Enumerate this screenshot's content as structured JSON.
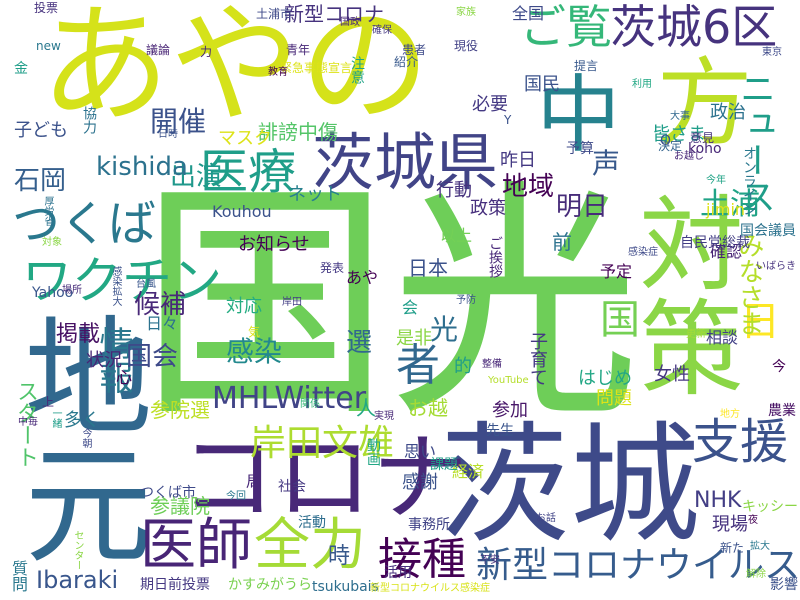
{
  "words": [
    {
      "text": "国光",
      "color": "#6ece58"
    },
    {
      "text": "あやの",
      "color": "#d5e21a"
    },
    {
      "text": "茨城",
      "color": "#3e4a89"
    },
    {
      "text": "コロナ",
      "color": "#482878"
    },
    {
      "text": "地元",
      "color": "#31688e"
    },
    {
      "text": "方",
      "color": "#bddf26"
    },
    {
      "text": "対策",
      "color": "#8bd646"
    },
    {
      "text": "中",
      "color": "#26828e"
    },
    {
      "text": "茨城県",
      "color": "#414487"
    },
    {
      "text": "医師",
      "color": "#482576"
    },
    {
      "text": "全力",
      "color": "#a5db36"
    },
    {
      "text": "ご覧",
      "color": "#35b779"
    },
    {
      "text": "茨城6区",
      "color": "#46337e"
    },
    {
      "text": "医療",
      "color": "#1f9e89"
    },
    {
      "text": "つくば",
      "color": "#2a788e"
    },
    {
      "text": "ワクチン",
      "color": "#22a884"
    },
    {
      "text": "接種",
      "color": "#440154"
    },
    {
      "text": "支援",
      "color": "#3b528b"
    },
    {
      "text": "新型コロナウイルス",
      "color": "#365c8d"
    },
    {
      "text": "MHLWitter",
      "color": "#414487"
    },
    {
      "text": "岸田文雄",
      "color": "#addc30"
    },
    {
      "text": "日",
      "color": "#fde725"
    },
    {
      "text": "者",
      "color": "#31688e"
    },
    {
      "text": "国",
      "color": "#75d054"
    },
    {
      "text": "ニュース",
      "color": "#1f9e89"
    },
    {
      "text": "開催",
      "color": "#3b528b"
    },
    {
      "text": "出演",
      "color": "#1f988b"
    },
    {
      "text": "kishida",
      "color": "#2c728e"
    },
    {
      "text": "候補",
      "color": "#482878"
    },
    {
      "text": "情報",
      "color": "#2a788e"
    },
    {
      "text": "感染",
      "color": "#23898e"
    },
    {
      "text": "選",
      "color": "#31688e"
    },
    {
      "text": "国会",
      "color": "#3e4a89"
    },
    {
      "text": "石岡",
      "color": "#355f8d"
    },
    {
      "text": "地域",
      "color": "#440154"
    },
    {
      "text": "明日",
      "color": "#472c7a"
    },
    {
      "text": "声",
      "color": "#38598c"
    },
    {
      "text": "土浦",
      "color": "#20a386"
    },
    {
      "text": "光",
      "color": "#2e6e8e"
    },
    {
      "text": "政策",
      "color": "#472f7d"
    },
    {
      "text": "Ibaraki",
      "color": "#39568c"
    },
    {
      "text": "NHK",
      "color": "#433e85"
    },
    {
      "text": "みなさま",
      "color": "#b5de2b"
    },
    {
      "text": "スタート",
      "color": "#50c46a"
    },
    {
      "text": "新型コロナ",
      "color": "#46337e"
    },
    {
      "text": "日本",
      "color": "#3b528b"
    },
    {
      "text": "誹謗中傷",
      "color": "#54c568"
    },
    {
      "text": "マスク",
      "color": "#dde318"
    },
    {
      "text": "参議院",
      "color": "#6ece58"
    },
    {
      "text": "ネット",
      "color": "#27808e"
    },
    {
      "text": "掲載",
      "color": "#471164"
    },
    {
      "text": "お知らせ",
      "color": "#440154"
    },
    {
      "text": "参院選",
      "color": "#bddf26"
    },
    {
      "text": "状況",
      "color": "#482576"
    },
    {
      "text": "対応",
      "color": "#25ac82"
    },
    {
      "text": "子ども",
      "color": "#3b528b"
    },
    {
      "text": "全国",
      "color": "#3e4a89"
    },
    {
      "text": "政治",
      "color": "#2c728e"
    },
    {
      "text": "皆さま",
      "color": "#1f9e89"
    },
    {
      "text": "必要",
      "color": "#443983"
    },
    {
      "text": "国民",
      "color": "#3b528b"
    },
    {
      "text": "予算",
      "color": "#3e4a89"
    },
    {
      "text": "昨日",
      "color": "#443983"
    },
    {
      "text": "行動",
      "color": "#46327e"
    },
    {
      "text": "現場",
      "color": "#46327e"
    },
    {
      "text": "経済",
      "color": "#b8de29"
    },
    {
      "text": "感謝",
      "color": "#3b528b"
    },
    {
      "text": "前",
      "color": "#2c728e"
    },
    {
      "text": "問題",
      "color": "#dde318"
    },
    {
      "text": "参加",
      "color": "#481769"
    },
    {
      "text": "はじめ",
      "color": "#22a785"
    },
    {
      "text": "子育て",
      "color": "#443983"
    },
    {
      "text": "女性",
      "color": "#453781"
    },
    {
      "text": "確認",
      "color": "#482475"
    },
    {
      "text": "相談",
      "color": "#424186"
    },
    {
      "text": "予定",
      "color": "#440154"
    },
    {
      "text": "多く",
      "color": "#2a788e"
    },
    {
      "text": "日々",
      "color": "#2c728e"
    },
    {
      "text": "思い",
      "color": "#3e4a89"
    },
    {
      "text": "課題",
      "color": "#1f9e89"
    },
    {
      "text": "局",
      "color": "#482878"
    },
    {
      "text": "社会",
      "color": "#453882"
    },
    {
      "text": "活動",
      "color": "#2e6e8e"
    },
    {
      "text": "事務所",
      "color": "#414487"
    },
    {
      "text": "お越",
      "color": "#a5db36"
    },
    {
      "text": "先生",
      "color": "#3a548c"
    },
    {
      "text": "動画",
      "color": "#22a785"
    },
    {
      "text": "国会議員",
      "color": "#2c728e"
    },
    {
      "text": "自民党総裁",
      "color": "#433e85"
    },
    {
      "text": "オンライン",
      "color": "#2a788e"
    },
    {
      "text": "Kouhou",
      "color": "#3b528b"
    },
    {
      "text": "jimin",
      "color": "#dde318"
    },
    {
      "text": "koho",
      "color": "#482878"
    },
    {
      "text": "Yahoo",
      "color": "#39568c"
    },
    {
      "text": "キッシー",
      "color": "#8bd646"
    },
    {
      "text": "期日前投票",
      "color": "#453882"
    },
    {
      "text": "かすみがうら",
      "color": "#7ad151"
    },
    {
      "text": "tsukubais",
      "color": "#2e6e8e"
    },
    {
      "text": "活用",
      "color": "#472f7d"
    },
    {
      "text": "つくば市",
      "color": "#3e4a89"
    },
    {
      "text": "質問",
      "color": "#2a788e"
    },
    {
      "text": "新型コロナウイルス感染症",
      "color": "#d8e219"
    },
    {
      "text": "緊急事態宣言",
      "color": "#dde318"
    },
    {
      "text": "厚労省",
      "color": "#2c728e"
    },
    {
      "text": "金",
      "color": "#1f9e89"
    },
    {
      "text": "力",
      "color": "#482878"
    },
    {
      "text": "協力",
      "color": "#2c728e"
    },
    {
      "text": "新た",
      "color": "#3b528b"
    },
    {
      "text": "影響",
      "color": "#3b528b"
    },
    {
      "text": "農業",
      "color": "#471164"
    },
    {
      "text": "更新",
      "color": "#a5db36"
    },
    {
      "text": "今回",
      "color": "#2a788e"
    },
    {
      "text": "センター",
      "color": "#8bd646"
    },
    {
      "text": "土浦市",
      "color": "#3e4a89"
    },
    {
      "text": "投票",
      "color": "#46327e"
    },
    {
      "text": "議論",
      "color": "#482475"
    },
    {
      "text": "青年",
      "color": "#482878"
    },
    {
      "text": "注意",
      "color": "#20a386"
    },
    {
      "text": "紹介",
      "color": "#38598c"
    },
    {
      "text": "患者",
      "color": "#3e4a89"
    },
    {
      "text": "現役",
      "color": "#424186"
    },
    {
      "text": "提言",
      "color": "#38598c"
    },
    {
      "text": "東京",
      "color": "#3e4a89"
    },
    {
      "text": "家族",
      "color": "#8bd646"
    },
    {
      "text": "決定",
      "color": "#33638d"
    },
    {
      "text": "意見",
      "color": "#46327e"
    },
    {
      "text": "お越し",
      "color": "#482878"
    },
    {
      "text": "今年",
      "color": "#20a386"
    },
    {
      "text": "感染症",
      "color": "#3e4a89"
    },
    {
      "text": "以上",
      "color": "#73d056"
    },
    {
      "text": "是非",
      "color": "#8bd646"
    },
    {
      "text": "的",
      "color": "#1f9e89"
    },
    {
      "text": "心",
      "color": "#440154"
    },
    {
      "text": "人",
      "color": "#22a884"
    },
    {
      "text": "時",
      "color": "#38598c"
    },
    {
      "text": "今",
      "color": "#440154"
    },
    {
      "text": "会",
      "color": "#1f9e89"
    },
    {
      "text": "あや",
      "color": "#440154"
    },
    {
      "text": "ご挨拶",
      "color": "#482878"
    },
    {
      "text": "new",
      "color": "#2a788e"
    },
    {
      "text": "Y",
      "color": "#3b528b"
    },
    {
      "text": "O",
      "color": "#3b528b"
    },
    {
      "text": "日時",
      "color": "#3b528b"
    },
    {
      "text": "上",
      "color": "#482878"
    },
    {
      "text": "今朝",
      "color": "#3e4a89"
    },
    {
      "text": "中毎",
      "color": "#482878"
    },
    {
      "text": "台風",
      "color": "#39568c"
    },
    {
      "text": "発表",
      "color": "#443983"
    },
    {
      "text": "予防",
      "color": "#3b528b"
    },
    {
      "text": "場所",
      "color": "#472c7a"
    },
    {
      "text": "対象",
      "color": "#8bd646"
    },
    {
      "text": "気",
      "color": "#dde318"
    },
    {
      "text": "夜",
      "color": "#440154"
    },
    {
      "text": "拡大",
      "color": "#2a788e"
    },
    {
      "text": "お話",
      "color": "#414487"
    },
    {
      "text": "大事",
      "color": "#31688e"
    },
    {
      "text": "解除",
      "color": "#8bd646"
    },
    {
      "text": "不安",
      "color": "#46337e"
    },
    {
      "text": "関係",
      "color": "#35b779"
    },
    {
      "text": "実現",
      "color": "#482878"
    },
    {
      "text": "一緒",
      "color": "#1f9e89"
    },
    {
      "text": "YouTube",
      "color": "#b5de2b"
    },
    {
      "text": "国政",
      "color": "#482878"
    },
    {
      "text": "確保",
      "color": "#453882"
    },
    {
      "text": "いばらき",
      "color": "#46327e"
    },
    {
      "text": "整備",
      "color": "#482878"
    },
    {
      "text": "利用",
      "color": "#22a884"
    },
    {
      "text": "地方",
      "color": "#fde725"
    },
    {
      "text": "岸田",
      "color": "#433e85"
    },
    {
      "text": "感染拡大",
      "color": "#3b528b"
    },
    {
      "text": "教育",
      "color": "#440154"
    }
  ]
}
